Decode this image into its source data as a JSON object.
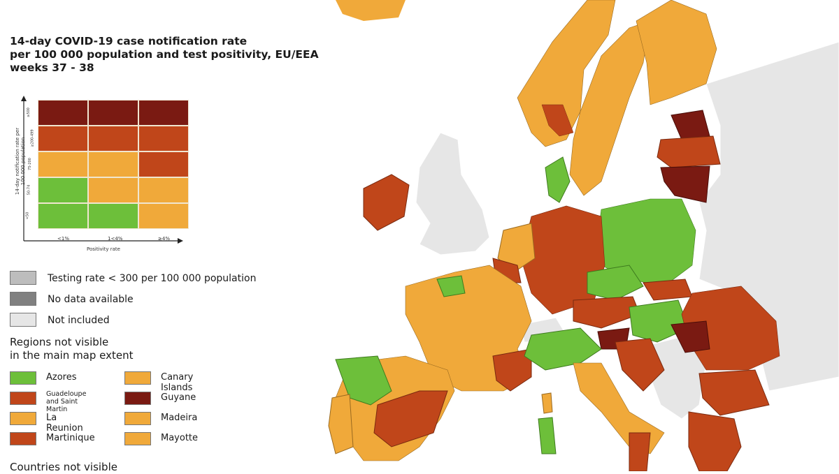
{
  "title": "14-day COVID-19 case notification rate\nper 100 000 population and test positivity, EU/EEA\nweeks 37 - 38",
  "colors": {
    "green": "#6dbf3a",
    "yellow": "#f0a93a",
    "orange": "#c0461a",
    "darkred": "#7a1a12",
    "grey_testing": "#bdbdbd",
    "grey_nodata": "#808080",
    "not_included": "#e6e6e6",
    "sea": "#ffffff"
  },
  "matrix": {
    "y_axis_label": "14-day notification rate per 100 000 population",
    "x_axis_label": "Positivity rate",
    "row_labels": [
      "≥500",
      "≥200-499",
      "75-200",
      "50-74",
      "<50"
    ],
    "col_labels": [
      "<1%",
      "1<4%",
      "≥4%"
    ],
    "cells": [
      [
        "darkred",
        "darkred",
        "darkred"
      ],
      [
        "orange",
        "orange",
        "orange"
      ],
      [
        "yellow",
        "yellow",
        "orange"
      ],
      [
        "green",
        "yellow",
        "yellow"
      ],
      [
        "green",
        "green",
        "yellow"
      ]
    ]
  },
  "legend": {
    "testing_rate": "Testing rate < 300 per 100 000 population",
    "no_data": "No data available",
    "not_included": "Not included",
    "regions_heading": "Regions not visible\nin the main map extent",
    "countries_heading": "Countries not visible"
  },
  "regions": [
    {
      "label": "Azores",
      "color": "green"
    },
    {
      "label": "Canary Islands",
      "color": "yellow"
    },
    {
      "label": "Guadeloupe\nand Saint Martin",
      "color": "orange"
    },
    {
      "label": "Guyane",
      "color": "darkred"
    },
    {
      "label": "La Reunion",
      "color": "yellow"
    },
    {
      "label": "Madeira",
      "color": "yellow"
    },
    {
      "label": "Martinique",
      "color": "orange"
    },
    {
      "label": "Mayotte",
      "color": "yellow"
    }
  ]
}
